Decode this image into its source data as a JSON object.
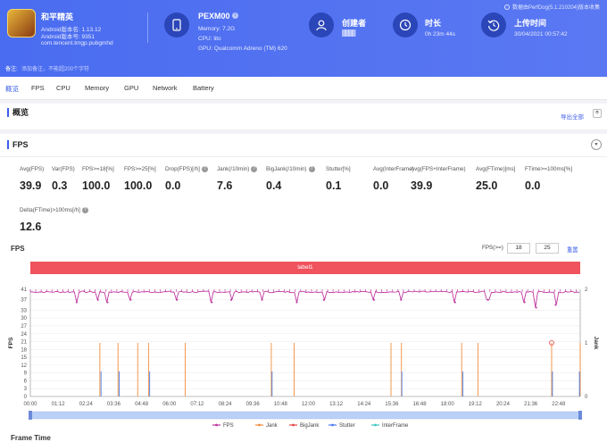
{
  "header": {
    "app_name": "和平精英",
    "android_version_name": "Android版本名: 1.13.12",
    "android_version_code": "Android版本号: 9351",
    "package": "com.tencent.tmgp.pubgmhd",
    "device_name": "PEXM00",
    "memory": "Memory: 7.2G",
    "cpu": "CPU: lito",
    "gpu": "GPU: Qualcomm Adreno (TM) 620",
    "creator_label": "创建者",
    "creator_value": "████",
    "duration_label": "时长",
    "duration_value": "0h 23m 44s",
    "upload_label": "上传时间",
    "upload_value": "30/04/2021 00:57:42",
    "version_note": "数据由PerfDog(5.1.210204)版本收集",
    "note_label": "备注:",
    "note_placeholder": "添加备注，不能超200个字符",
    "colors": {
      "header_bg": "#4a6cf0",
      "icon_circle": "#2b46b8"
    }
  },
  "tabs": [
    "概览",
    "FPS",
    "CPU",
    "Memory",
    "GPU",
    "Network",
    "Battery"
  ],
  "overview": {
    "title": "概览",
    "export_label": "导出全部"
  },
  "fps_section": {
    "title": "FPS",
    "metrics": [
      {
        "label": "Avg(FPS)",
        "value": "39.9",
        "help": false
      },
      {
        "label": "Var(FPS)",
        "value": "0.3",
        "help": false
      },
      {
        "label": "FPS>=18[%]",
        "value": "100.0",
        "help": false
      },
      {
        "label": "FPS>=25[%]",
        "value": "100.0",
        "help": false
      },
      {
        "label": "Drop(FPS)[/h]",
        "value": "0.0",
        "help": true
      },
      {
        "label": "Jank(/10min)",
        "value": "7.6",
        "help": true
      },
      {
        "label": "BigJank(/10min)",
        "value": "0.4",
        "help": true
      },
      {
        "label": "Stutter[%]",
        "value": "0.1",
        "help": false
      },
      {
        "label": "Avg(InterFrame)",
        "value": "0.0",
        "help": false
      },
      {
        "label": "Avg(FPS+InterFrame)",
        "value": "39.9",
        "help": false
      },
      {
        "label": "Avg(FTime)[ms]",
        "value": "25.0",
        "help": false
      },
      {
        "label": "FTime>=100ms[%]",
        "value": "0.0",
        "help": false
      },
      {
        "label": "Delta(FTime)>100ms[/h]",
        "value": "12.6",
        "help": true
      }
    ]
  },
  "chart": {
    "title": "FPS",
    "fps_ctrl_label": "FPS(>=)",
    "fps_min_1": "18",
    "fps_min_2": "25",
    "reset_label": "重置",
    "label_band": "label1",
    "next_section": "Frame Time"
  },
  "chart_data": {
    "type": "line",
    "title": "FPS",
    "ylabel": "FPS",
    "y2label": "Jank",
    "ylim": [
      0,
      41
    ],
    "y2lim": [
      0,
      2
    ],
    "y_ticks": [
      "0",
      "3",
      "6",
      "9",
      "12",
      "15",
      "18",
      "21",
      "24",
      "27",
      "30",
      "33",
      "37",
      "41"
    ],
    "y2_ticks": [
      "0",
      "1",
      "2"
    ],
    "x_ticks": [
      "00:00",
      "01:12",
      "02:24",
      "03:36",
      "04:48",
      "06:00",
      "07:12",
      "08:24",
      "09:36",
      "10:48",
      "12:00",
      "13:12",
      "14:24",
      "15:36",
      "16:48",
      "18:00",
      "19:12",
      "20:24",
      "21:36",
      "22:48"
    ],
    "x_range_seconds": [
      0,
      1424
    ],
    "series": [
      {
        "name": "FPS",
        "color": "#c0379f",
        "baseline": 40,
        "dips": [
          [
            120,
            36
          ],
          [
            175,
            37
          ],
          [
            200,
            36
          ],
          [
            260,
            37
          ],
          [
            380,
            37
          ],
          [
            470,
            36
          ],
          [
            520,
            37
          ],
          [
            600,
            37
          ],
          [
            690,
            36
          ],
          [
            760,
            37
          ],
          [
            890,
            37
          ],
          [
            960,
            37
          ],
          [
            1100,
            36
          ],
          [
            1185,
            37
          ],
          [
            1280,
            36
          ],
          [
            1310,
            34
          ],
          [
            1360,
            35
          ]
        ]
      },
      {
        "name": "Jank",
        "color": "#f08c3c",
        "spikes_seconds": [
          180,
          227,
          278,
          306,
          401,
          624,
          683,
          934,
          961,
          1117,
          1159,
          1350,
          1424
        ]
      },
      {
        "name": "BigJank",
        "color": "#e84545",
        "spikes_seconds": [
          1350
        ]
      },
      {
        "name": "Stutter",
        "color": "#4a7be8",
        "spikes_seconds": [
          183,
          230,
          309,
          626,
          962,
          1120,
          1352,
          1422
        ]
      },
      {
        "name": "InterFrame",
        "color": "#3cc9c0",
        "spikes_seconds": []
      }
    ]
  }
}
